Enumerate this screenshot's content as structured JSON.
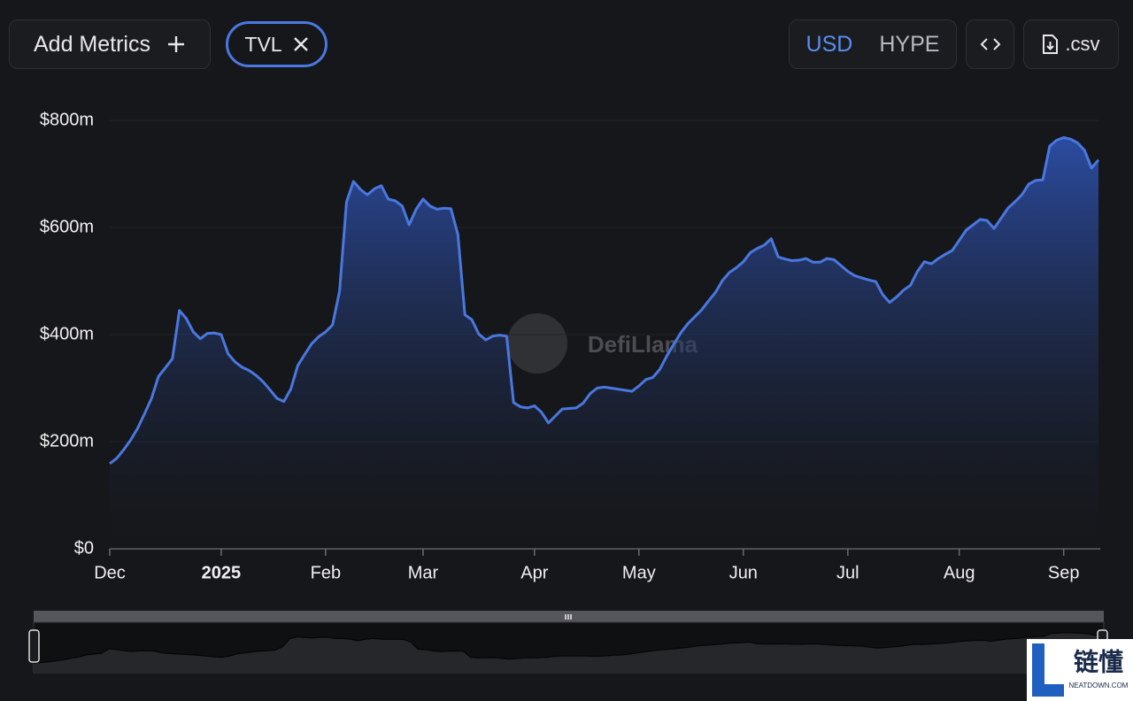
{
  "toolbar": {
    "add_metrics": "Add Metrics",
    "metric_chip": "TVL",
    "currencies": [
      "USD",
      "HYPE"
    ],
    "active_currency": 0,
    "export": ".csv"
  },
  "chart_data": {
    "type": "area",
    "color": "#4a78e0",
    "watermark": "DefiLlama",
    "categories": [
      "Dec",
      null,
      null,
      null,
      null,
      null,
      null,
      null,
      null,
      null,
      null,
      null,
      null,
      null,
      null,
      null,
      "2025",
      null,
      null,
      null,
      null,
      null,
      null,
      null,
      null,
      null,
      null,
      null,
      null,
      null,
      null,
      "Feb",
      null,
      null,
      null,
      null,
      null,
      null,
      null,
      null,
      null,
      null,
      null,
      null,
      null,
      "Mar",
      null,
      null,
      null,
      null,
      null,
      null,
      null,
      null,
      null,
      null,
      null,
      null,
      null,
      null,
      null,
      "Apr",
      null,
      null,
      null,
      null,
      null,
      null,
      null,
      null,
      null,
      null,
      null,
      null,
      null,
      null,
      "May",
      null,
      null,
      null,
      null,
      null,
      null,
      null,
      null,
      null,
      null,
      null,
      null,
      null,
      null,
      "Jun",
      null,
      null,
      null,
      null,
      null,
      null,
      null,
      null,
      null,
      null,
      null,
      null,
      null,
      null,
      "Jul",
      null,
      null,
      null,
      null,
      null,
      null,
      null,
      null,
      null,
      null,
      null,
      null,
      null,
      null,
      null,
      "Aug",
      null,
      null,
      null,
      null,
      null,
      null,
      null,
      null,
      null,
      null,
      null,
      null,
      null,
      null,
      "Sep",
      null,
      null,
      null,
      null,
      null
    ],
    "values": [
      159,
      169,
      185,
      203,
      225,
      252,
      281,
      322,
      338,
      355,
      445,
      430,
      405,
      392,
      402,
      403,
      400,
      364,
      349,
      339,
      333,
      324,
      312,
      297,
      281,
      275,
      298,
      342,
      363,
      383,
      396,
      405,
      418,
      481,
      648,
      686,
      671,
      661,
      672,
      678,
      653,
      650,
      640,
      605,
      634,
      653,
      640,
      634,
      636,
      635,
      587,
      437,
      428,
      401,
      390,
      397,
      399,
      397,
      273,
      265,
      263,
      267,
      255,
      235,
      248,
      261,
      262,
      263,
      272,
      290,
      300,
      302,
      300,
      298,
      296,
      294,
      304,
      316,
      320,
      335,
      360,
      382,
      403,
      420,
      433,
      446,
      463,
      479,
      501,
      516,
      525,
      536,
      553,
      561,
      567,
      579,
      545,
      541,
      538,
      539,
      542,
      535,
      535,
      542,
      540,
      529,
      518,
      510,
      506,
      502,
      499,
      475,
      460,
      470,
      483,
      492,
      518,
      536,
      532,
      542,
      550,
      557,
      576,
      595,
      605,
      615,
      613,
      598,
      617,
      636,
      648,
      661,
      681,
      688,
      689,
      752,
      763,
      768,
      765,
      758,
      744,
      711,
      726
    ],
    "ylim": [
      0,
      800
    ],
    "yticks": [
      {
        "value": 0,
        "label": "$0"
      },
      {
        "value": 200,
        "label": "$200m"
      },
      {
        "value": 400,
        "label": "$400m"
      },
      {
        "value": 600,
        "label": "$600m"
      },
      {
        "value": 800,
        "label": "$800m"
      }
    ],
    "grid": true
  },
  "corner_badge": {
    "title": "链懂",
    "subtitle": "NEATDOWN.COM"
  }
}
